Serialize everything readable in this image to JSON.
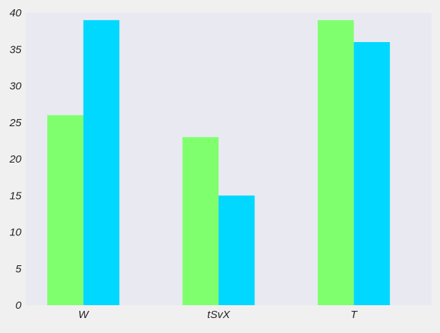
{
  "chart_data": {
    "type": "bar",
    "categories": [
      "W",
      "tSvX",
      "T"
    ],
    "series": [
      {
        "values": [
          26,
          23,
          39
        ],
        "color": "#80ff6e"
      },
      {
        "values": [
          39,
          15,
          36
        ],
        "color": "#00d8ff"
      }
    ],
    "ylim": [
      0,
      40
    ],
    "yticks": [
      0,
      5,
      10,
      15,
      20,
      25,
      30,
      35,
      40
    ],
    "grid": false,
    "plot_background": "#e9e9f2",
    "page_background": "#f0f0f0",
    "legend": "none"
  }
}
